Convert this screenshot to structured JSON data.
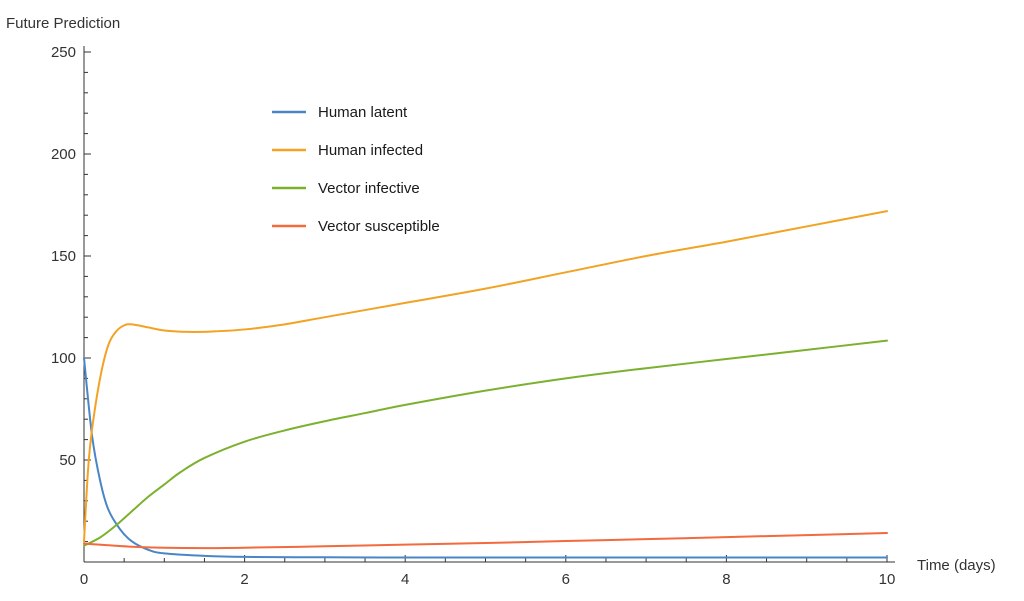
{
  "chart_data": {
    "type": "line",
    "ylabel": "Future Prediction",
    "xlabel": "Time (days)",
    "xlim": [
      0,
      10
    ],
    "ylim": [
      0,
      250
    ],
    "xticks": [
      0,
      2,
      4,
      6,
      8,
      10
    ],
    "yticks": [
      50,
      100,
      150,
      200,
      250
    ],
    "grid": false,
    "legend_position": "top-left-inner",
    "series": [
      {
        "name": "Human latent",
        "color": "#4a86c5",
        "points": [
          [
            0,
            100
          ],
          [
            0.1,
            62
          ],
          [
            0.2,
            40
          ],
          [
            0.3,
            26
          ],
          [
            0.45,
            16
          ],
          [
            0.6,
            10
          ],
          [
            0.8,
            6
          ],
          [
            1.0,
            4.2
          ],
          [
            1.5,
            3
          ],
          [
            2,
            2.5
          ],
          [
            3,
            2.3
          ],
          [
            4,
            2.2
          ],
          [
            6,
            2.2
          ],
          [
            8,
            2.2
          ],
          [
            10,
            2.2
          ]
        ]
      },
      {
        "name": "Human infected",
        "color": "#f2a324",
        "points": [
          [
            0,
            10
          ],
          [
            0.05,
            45
          ],
          [
            0.1,
            65
          ],
          [
            0.2,
            90
          ],
          [
            0.3,
            106
          ],
          [
            0.4,
            113
          ],
          [
            0.5,
            116
          ],
          [
            0.6,
            116.5
          ],
          [
            0.8,
            115
          ],
          [
            1.0,
            113.5
          ],
          [
            1.3,
            112.8
          ],
          [
            1.6,
            113
          ],
          [
            2,
            114
          ],
          [
            2.5,
            116.5
          ],
          [
            3,
            120
          ],
          [
            4,
            127
          ],
          [
            5,
            134
          ],
          [
            6,
            142
          ],
          [
            7,
            150
          ],
          [
            8,
            157
          ],
          [
            9,
            164.5
          ],
          [
            10,
            172
          ]
        ]
      },
      {
        "name": "Vector infective",
        "color": "#7bb12f",
        "points": [
          [
            0,
            8
          ],
          [
            0.2,
            12
          ],
          [
            0.4,
            18
          ],
          [
            0.6,
            25
          ],
          [
            0.8,
            32
          ],
          [
            1.0,
            38
          ],
          [
            1.2,
            44
          ],
          [
            1.5,
            51
          ],
          [
            2,
            59
          ],
          [
            2.5,
            64.5
          ],
          [
            3,
            69
          ],
          [
            3.5,
            73
          ],
          [
            4,
            77
          ],
          [
            5,
            84
          ],
          [
            6,
            90
          ],
          [
            7,
            95
          ],
          [
            8,
            99.5
          ],
          [
            9,
            104
          ],
          [
            10,
            108.5
          ]
        ]
      },
      {
        "name": "Vector susceptible",
        "color": "#f26a3e",
        "points": [
          [
            0,
            9
          ],
          [
            0.3,
            8.2
          ],
          [
            0.6,
            7.5
          ],
          [
            1.0,
            7
          ],
          [
            1.5,
            6.8
          ],
          [
            2,
            7
          ],
          [
            3,
            7.7
          ],
          [
            4,
            8.5
          ],
          [
            5,
            9.3
          ],
          [
            6,
            10.3
          ],
          [
            7,
            11.2
          ],
          [
            8,
            12.2
          ],
          [
            9,
            13.2
          ],
          [
            10,
            14.2
          ]
        ]
      }
    ]
  }
}
